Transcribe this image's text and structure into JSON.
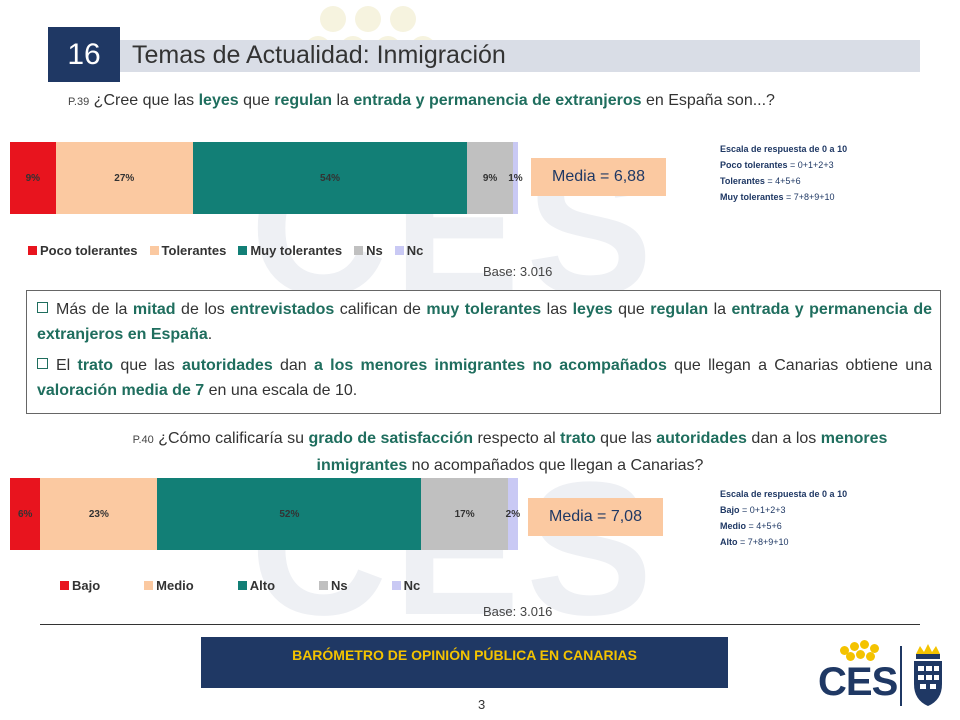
{
  "header": {
    "number": "16",
    "title": "Temas de Actualidad: Inmigración"
  },
  "q1": {
    "code": "P.39",
    "parts": [
      {
        "t": " ¿Cree que las ",
        "b": false
      },
      {
        "t": "leyes",
        "b": true
      },
      {
        "t": " que ",
        "b": false
      },
      {
        "t": "regulan",
        "b": true
      },
      {
        "t": " la ",
        "b": false
      },
      {
        "t": "entrada y permanencia de extranjeros",
        "b": true
      },
      {
        "t": " en España son...?",
        "b": false
      }
    ]
  },
  "q2": {
    "code": "P.40",
    "parts": [
      {
        "t": " ¿Cómo calificaría su ",
        "b": false
      },
      {
        "t": "grado de satisfacción",
        "b": true
      },
      {
        "t": " respecto al ",
        "b": false
      },
      {
        "t": "trato",
        "b": true
      },
      {
        "t": " que las ",
        "b": false
      },
      {
        "t": "autoridades",
        "b": true
      },
      {
        "t": " dan a los ",
        "b": false
      },
      {
        "t": "menores inmigrantes",
        "b": true
      },
      {
        "t": " no acompañados que llegan a Canarias?",
        "b": false
      }
    ]
  },
  "chart_data": [
    {
      "type": "bar",
      "orientation": "horizontal-stacked-100",
      "series": [
        {
          "name": "Poco tolerantes",
          "value": 9,
          "label": "9%",
          "color": "#e8141e"
        },
        {
          "name": "Tolerantes",
          "value": 27,
          "label": "27%",
          "color": "#fbc9a1"
        },
        {
          "name": "Muy tolerantes",
          "value": 54,
          "label": "54%",
          "color": "#127f76"
        },
        {
          "name": "Ns",
          "value": 9,
          "label": "9%",
          "color": "#c0c0c0"
        },
        {
          "name": "Nc",
          "value": 1,
          "label": "1%",
          "color": "#c9c9f4"
        }
      ],
      "legend": "bottom",
      "media": "Media = 6,88",
      "base": "Base: 3.016",
      "scale": {
        "title": "Escala de respuesta de 0 a 10",
        "lines": [
          {
            "name": "Poco tolerantes",
            "rule": " = 0+1+2+3"
          },
          {
            "name": "Tolerantes",
            "rule": " = 4+5+6"
          },
          {
            "name": "Muy tolerantes",
            "rule": " = 7+8+9+10"
          }
        ]
      }
    },
    {
      "type": "bar",
      "orientation": "horizontal-stacked-100",
      "series": [
        {
          "name": "Bajo",
          "value": 6,
          "label": "6%",
          "color": "#e8141e"
        },
        {
          "name": "Medio",
          "value": 23,
          "label": "23%",
          "color": "#fbc9a1"
        },
        {
          "name": "Alto",
          "value": 52,
          "label": "52%",
          "color": "#127f76"
        },
        {
          "name": "Ns",
          "value": 17,
          "label": "17%",
          "color": "#c0c0c0"
        },
        {
          "name": "Nc",
          "value": 2,
          "label": "2%",
          "color": "#c9c9f4"
        }
      ],
      "legend": "bottom",
      "media": "Media = 7,08",
      "base": "Base: 3.016",
      "scale": {
        "title": "Escala de respuesta de 0 a 10",
        "lines": [
          {
            "name": "Bajo",
            "rule": " = 0+1+2+3"
          },
          {
            "name": "Medio",
            "rule": " = 4+5+6"
          },
          {
            "name": "Alto",
            "rule": " = 7+8+9+10"
          }
        ]
      }
    }
  ],
  "summary": [
    [
      {
        "t": "Más de la ",
        "b": false
      },
      {
        "t": "mitad",
        "b": true
      },
      {
        "t": " de los ",
        "b": false
      },
      {
        "t": "entrevistados",
        "b": true
      },
      {
        "t": " califican de ",
        "b": false
      },
      {
        "t": "muy tolerantes",
        "b": true
      },
      {
        "t": " las ",
        "b": false
      },
      {
        "t": "leyes",
        "b": true
      },
      {
        "t": " que ",
        "b": false
      },
      {
        "t": "regulan",
        "b": true
      },
      {
        "t": " la ",
        "b": false
      },
      {
        "t": "entrada y permanencia de extranjeros en España",
        "b": true
      },
      {
        "t": ".",
        "b": false
      }
    ],
    [
      {
        "t": "El ",
        "b": false
      },
      {
        "t": "trato",
        "b": true
      },
      {
        "t": " que las ",
        "b": false
      },
      {
        "t": "autoridades",
        "b": true
      },
      {
        "t": " dan ",
        "b": false
      },
      {
        "t": "a los menores inmigrantes no acompañados",
        "b": true
      },
      {
        "t": " que llegan a Canarias obtiene una ",
        "b": false
      },
      {
        "t": "valoración media de 7",
        "b": true
      },
      {
        "t": " en una escala de 10.",
        "b": false
      }
    ]
  ],
  "footer": {
    "title": "BARÓMETRO DE OPINIÓN PÚBLICA EN CANARIAS",
    "page": "3",
    "logo_text": "CES"
  },
  "colors": {
    "navy": "#1f3864",
    "gold": "#f4c300",
    "teal_text": "#1f6e5e"
  },
  "icons": {
    "bullets": "checkbox-bullet-icon",
    "crest": "coat-of-arms-icon"
  }
}
